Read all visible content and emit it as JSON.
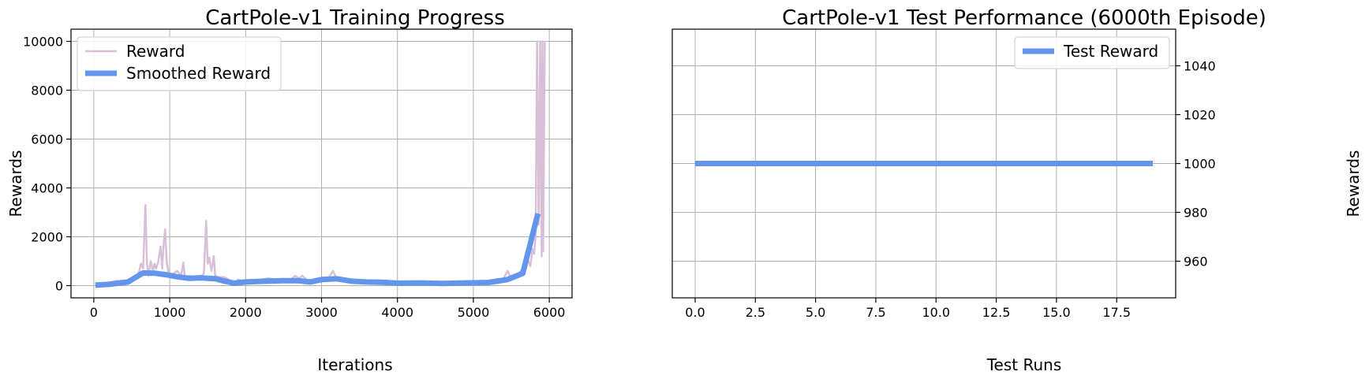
{
  "chart_data": [
    {
      "type": "line",
      "title": "CartPole-v1 Training Progress",
      "xlabel": "Iterations",
      "ylabel": "Rewards",
      "xlim": [
        -300,
        6300
      ],
      "ylim": [
        -500,
        10500
      ],
      "xticks": [
        0,
        1000,
        2000,
        3000,
        4000,
        5000,
        6000
      ],
      "yticks": [
        0,
        2000,
        4000,
        6000,
        8000,
        10000
      ],
      "grid": true,
      "legend_position": "upper-left",
      "series": [
        {
          "name": "Reward",
          "color": "#d8bfd8",
          "x": [
            20,
            100,
            200,
            300,
            400,
            500,
            550,
            600,
            620,
            650,
            680,
            700,
            720,
            750,
            780,
            800,
            820,
            850,
            880,
            900,
            920,
            940,
            960,
            980,
            1000,
            1050,
            1100,
            1150,
            1180,
            1200,
            1250,
            1300,
            1350,
            1400,
            1450,
            1480,
            1500,
            1520,
            1550,
            1580,
            1600,
            1650,
            1700,
            1750,
            1800,
            1850,
            1900,
            1950,
            2000,
            2100,
            2200,
            2300,
            2400,
            2500,
            2600,
            2650,
            2700,
            2750,
            2800,
            2900,
            3000,
            3100,
            3150,
            3200,
            3300,
            3400,
            3500,
            3600,
            3700,
            3800,
            3900,
            4000,
            4200,
            4400,
            4600,
            4800,
            5000,
            5200,
            5300,
            5400,
            5450,
            5500,
            5550,
            5600,
            5650,
            5700,
            5750,
            5780,
            5800,
            5820,
            5840,
            5860,
            5880,
            5900,
            5910,
            5920,
            5940
          ],
          "y": [
            20,
            50,
            100,
            200,
            150,
            300,
            350,
            600,
            900,
            700,
            3300,
            900,
            400,
            1000,
            600,
            900,
            700,
            1000,
            1600,
            700,
            1700,
            2300,
            1000,
            600,
            400,
            500,
            600,
            400,
            950,
            300,
            400,
            350,
            250,
            300,
            500,
            2650,
            900,
            1150,
            600,
            1200,
            400,
            350,
            350,
            300,
            200,
            100,
            250,
            200,
            150,
            200,
            250,
            300,
            250,
            200,
            250,
            400,
            300,
            400,
            250,
            200,
            200,
            350,
            600,
            300,
            200,
            150,
            200,
            150,
            100,
            150,
            100,
            100,
            100,
            150,
            100,
            150,
            100,
            150,
            200,
            300,
            600,
            300,
            400,
            500,
            700,
            1200,
            800,
            1500,
            1300,
            2000,
            10000,
            2500,
            10000,
            1200,
            10000,
            1400,
            10000
          ]
        },
        {
          "name": "Smoothed Reward",
          "color": "#6495ed",
          "x": [
            20,
            200,
            450,
            650,
            800,
            950,
            1100,
            1250,
            1400,
            1600,
            1700,
            1850,
            2000,
            2250,
            2500,
            2700,
            2850,
            3000,
            3200,
            3400,
            3600,
            3800,
            4000,
            4300,
            4600,
            4900,
            5200,
            5450,
            5650,
            5850
          ],
          "y": [
            20,
            50,
            150,
            520,
            510,
            450,
            360,
            300,
            320,
            280,
            200,
            100,
            150,
            180,
            200,
            200,
            150,
            250,
            280,
            180,
            150,
            140,
            100,
            110,
            90,
            110,
            130,
            250,
            500,
            2950
          ]
        }
      ]
    },
    {
      "type": "line",
      "title": "CartPole-v1 Test Performance (6000th Episode)",
      "xlabel": "Test Runs",
      "ylabel": "Rewards",
      "ylabel_position": "right",
      "xlim": [
        -0.95,
        19.95
      ],
      "ylim": [
        945,
        1055
      ],
      "xticks": [
        0.0,
        2.5,
        5.0,
        7.5,
        10.0,
        12.5,
        15.0,
        17.5
      ],
      "yticks": [
        960,
        980,
        1000,
        1020,
        1040
      ],
      "grid": true,
      "legend_position": "upper-right",
      "series": [
        {
          "name": "Test Reward",
          "color": "#6495ed",
          "x": [
            0,
            1,
            2,
            3,
            4,
            5,
            6,
            7,
            8,
            9,
            10,
            11,
            12,
            13,
            14,
            15,
            16,
            17,
            18,
            19
          ],
          "y": [
            1000,
            1000,
            1000,
            1000,
            1000,
            1000,
            1000,
            1000,
            1000,
            1000,
            1000,
            1000,
            1000,
            1000,
            1000,
            1000,
            1000,
            1000,
            1000,
            1000
          ]
        }
      ]
    }
  ]
}
